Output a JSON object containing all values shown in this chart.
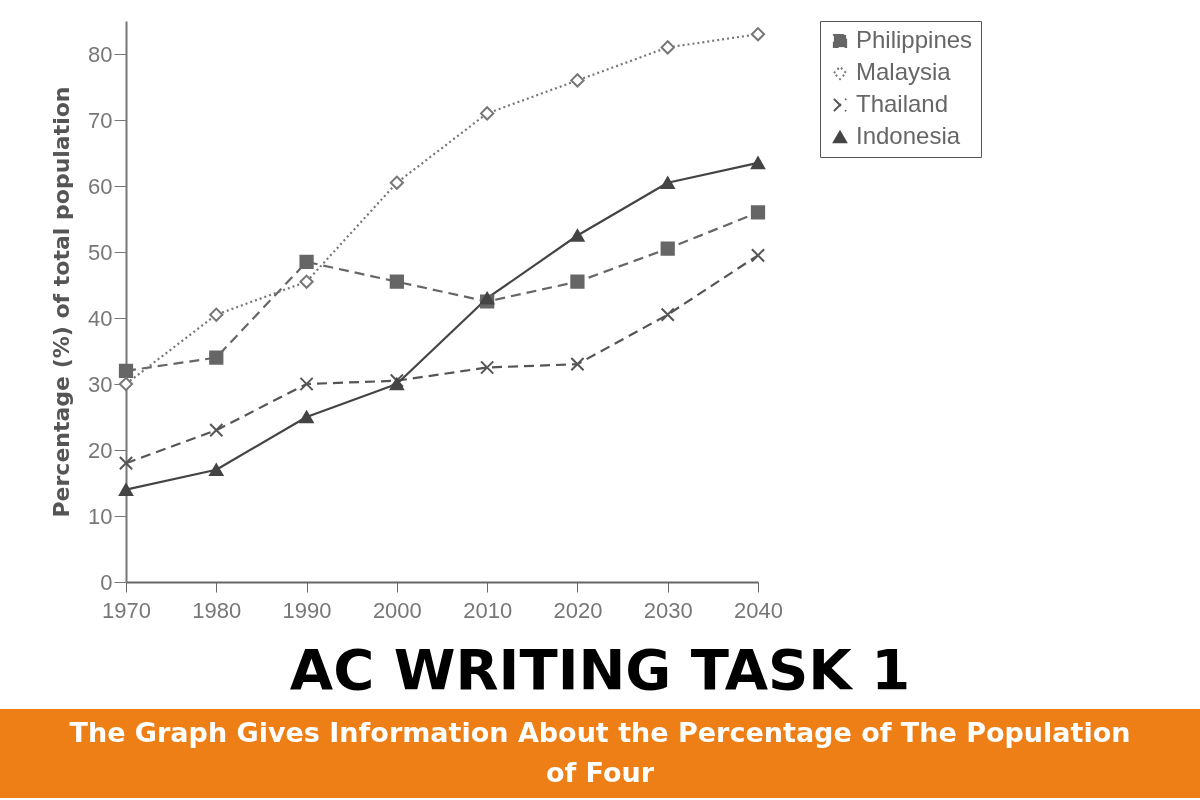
{
  "chart_data": {
    "type": "line",
    "title": "AC WRITING TASK 1",
    "subtitle": "The Graph Gives Information About the Percentage of The Population of Four",
    "ylabel": "Percentage (%) of total population",
    "x": [
      1970,
      1980,
      1990,
      2000,
      2010,
      2020,
      2030,
      2040
    ],
    "xlim": [
      1970,
      2040
    ],
    "xticks": [
      1970,
      1980,
      1990,
      2000,
      2010,
      2020,
      2030,
      2040
    ],
    "ylim": [
      0,
      85
    ],
    "yticks": [
      0,
      10,
      20,
      30,
      40,
      50,
      60,
      70,
      80
    ],
    "grid": false,
    "legend": "right",
    "series": [
      {
        "name": "Philippines",
        "color": "#666666",
        "marker": "square",
        "line_style": "dashed",
        "values": [
          32,
          34,
          48.5,
          45.5,
          42.5,
          45.5,
          50.5,
          56
        ]
      },
      {
        "name": "Malaysia",
        "color": "#777777",
        "marker": "diamond",
        "line_style": "dotted",
        "values": [
          30,
          40.5,
          45.5,
          60.5,
          71,
          76,
          81,
          83
        ]
      },
      {
        "name": "Thailand",
        "color": "#555555",
        "marker": "cross",
        "line_style": "dashed",
        "values": [
          18,
          23,
          30,
          30.5,
          32.5,
          33,
          40.5,
          49.5
        ]
      },
      {
        "name": "Indonesia",
        "color": "#444444",
        "marker": "triangle",
        "line_style": "solid",
        "values": [
          14,
          17,
          25,
          30,
          43,
          52.5,
          60.5,
          63.5
        ]
      }
    ]
  }
}
